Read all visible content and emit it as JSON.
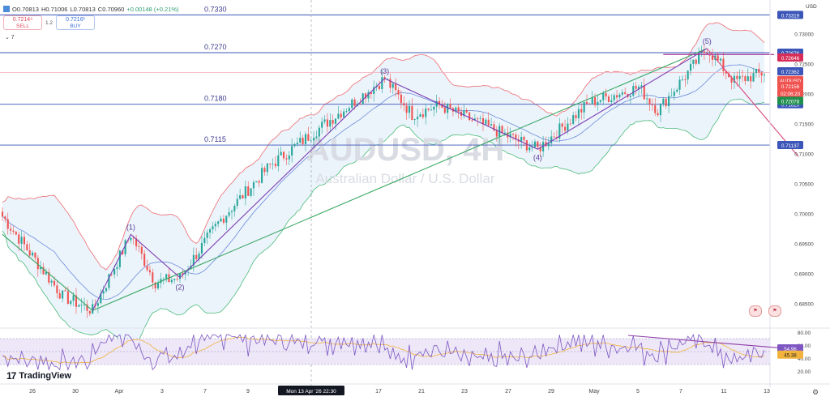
{
  "header": {
    "symbol_icon": "bars-icon",
    "open": "O0.70813",
    "high": "H0.71006",
    "low": "L0.70813",
    "close": "C0.70960",
    "change": "+0.00148 (+0.21%)"
  },
  "trade": {
    "sell_price": "0.7214⁹",
    "sell_label": "SELL",
    "spread": "1.2",
    "buy_price": "0.7216¹",
    "buy_label": "BUY"
  },
  "collapse_label": "⌄ 7",
  "currency": "USD",
  "brand": {
    "logo": "17",
    "name": "TradingView"
  },
  "watermark": {
    "title": "AUDUSD, 4H",
    "subtitle": "Australian Dollar / U.S. Dollar"
  },
  "colors": {
    "candle_up": "#26a69a",
    "candle_down": "#ef5350",
    "band": "#8fc3ec",
    "band_fill": "#dbeaf8",
    "upper_band": "#ee6b70",
    "lower_band": "#4cbc7a",
    "middle_band": "#5b7fd6",
    "trend_green": "#3aa865",
    "wave_purple": "#7b3db3",
    "down_line": "#d94a7a",
    "level_line": "#3b55b8",
    "rsi_line": "#7e57c2",
    "rsi_ma": "#f1b33c"
  },
  "chart_data": {
    "type": "candlestick",
    "title": "AUDUSD, 4H",
    "subtitle": "Australian Dollar / U.S. Dollar",
    "ylim": [
      0.6825,
      0.7345
    ],
    "y_ticks": [
      "0.73000",
      "0.72500",
      "0.72000",
      "0.71500",
      "0.71000",
      "0.70500",
      "0.70000",
      "0.69500",
      "0.69000",
      "0.68500"
    ],
    "x_ticks": [
      "26",
      "30",
      "Apr",
      "3",
      "7",
      "9",
      "17",
      "21",
      "23",
      "27",
      "29",
      "May",
      "5",
      "7",
      "11",
      "13"
    ],
    "crosshair_time": "Mon 13 Apr '26  22:30",
    "horizontal_levels": [
      {
        "label": "0.7330",
        "value": 0.7331,
        "tag": "0.73319"
      },
      {
        "label": "0.7270",
        "value": 0.7268,
        "tag": "0.72676"
      },
      {
        "label": "0.7180",
        "value": 0.7182,
        "tag": "0.71820"
      },
      {
        "label": "0.7115",
        "value": 0.7114,
        "tag": "0.71137"
      }
    ],
    "price_tags": [
      {
        "text": "0.72646",
        "color": "#d62e59"
      },
      {
        "text": "0.72362",
        "color": "#3b55b8"
      },
      {
        "text": "AUDUSD",
        "color": "#ef5350"
      },
      {
        "text": "0.72156",
        "color": "#ef5350"
      },
      {
        "text": "02:06:20",
        "color": "#ef5350"
      },
      {
        "text": "0.72078",
        "color": "#1f8f4d"
      }
    ],
    "wave_labels": [
      {
        "label": "(1)",
        "x": "Apr 1",
        "price": 0.6965
      },
      {
        "label": "(2)",
        "x": "Apr 2",
        "price": 0.6892
      },
      {
        "label": "(3)",
        "x": "Apr 17",
        "price": 0.7225
      },
      {
        "label": "(4)",
        "x": "Apr 29",
        "price": 0.7108
      },
      {
        "label": "(5)",
        "x": "May 6",
        "price": 0.7275
      }
    ],
    "rsi": {
      "ylim": [
        20,
        80
      ],
      "ticks": [
        "80.00",
        "60.00",
        "40.00",
        "20.00"
      ],
      "value_tags": [
        "54.96",
        "45.38"
      ],
      "bands": [
        70,
        30
      ]
    }
  }
}
